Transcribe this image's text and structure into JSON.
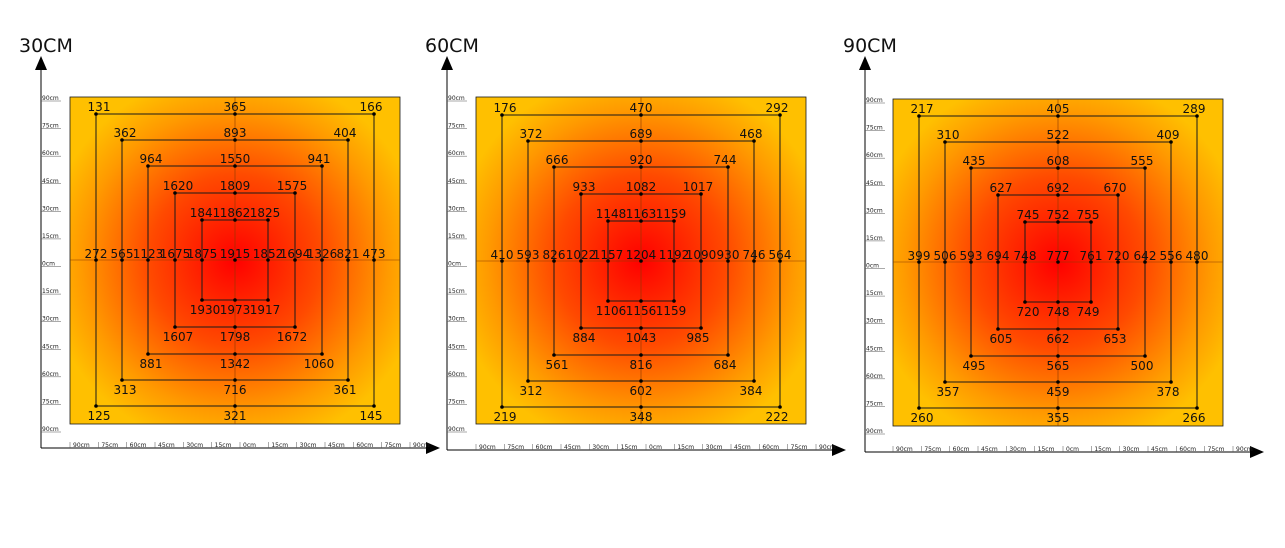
{
  "chart_data": [
    {
      "type": "heatmap",
      "title": "30CM",
      "axis_tick_labels": [
        "90cm",
        "75cm",
        "60cm",
        "45cm",
        "30cm",
        "15cm",
        "0cm",
        "15cm",
        "30cm",
        "45cm",
        "60cm",
        "75cm",
        "90cm"
      ],
      "rings": [
        {
          "name": "",
          "values": {
            "tl": 131,
            "tm": 365,
            "tr": 166,
            "ml": 272,
            "mr": 473,
            "bl": 125,
            "bm": 321,
            "br": 145
          }
        },
        {
          "name": "",
          "values": {
            "tl": 362,
            "tm": 893,
            "tr": 404,
            "ml": 565,
            "mr": 821,
            "bl": 313,
            "bm": 716,
            "br": 361
          }
        },
        {
          "name": "",
          "values": {
            "tl": 964,
            "tm": 1550,
            "tr": 941,
            "ml": 1123,
            "mr": 1326,
            "bl": 881,
            "bm": 1342,
            "br": 1060
          }
        },
        {
          "name": "",
          "values": {
            "tl": 1620,
            "tm": 1809,
            "tr": 1575,
            "ml": 1675,
            "mr": 1694,
            "bl": 1607,
            "bm": 1798,
            "br": 1672
          }
        },
        {
          "name": "",
          "values": {
            "tl": 1841,
            "tm": 1862,
            "tr": 1825,
            "ml": 1875,
            "mr": 1852,
            "bl": 1930,
            "bm": 1973,
            "br": 1917
          }
        }
      ],
      "center": 1915
    },
    {
      "type": "heatmap",
      "title": "60CM",
      "axis_tick_labels": [
        "90cm",
        "75cm",
        "60cm",
        "45cm",
        "30cm",
        "15cm",
        "0cm",
        "15cm",
        "30cm",
        "45cm",
        "60cm",
        "75cm",
        "90cm"
      ],
      "rings": [
        {
          "name": "",
          "values": {
            "tl": 176,
            "tm": 470,
            "tr": 292,
            "ml": 410,
            "mr": 564,
            "bl": 219,
            "bm": 348,
            "br": 222
          }
        },
        {
          "name": "",
          "values": {
            "tl": 372,
            "tm": 689,
            "tr": 468,
            "ml": 593,
            "mr": 746,
            "bl": 312,
            "bm": 602,
            "br": 384
          }
        },
        {
          "name": "",
          "values": {
            "tl": 666,
            "tm": 920,
            "tr": 744,
            "ml": 826,
            "mr": 930,
            "bl": 561,
            "bm": 816,
            "br": 684
          }
        },
        {
          "name": "",
          "values": {
            "tl": 933,
            "tm": 1082,
            "tr": 1017,
            "ml": 1022,
            "mr": 1090,
            "bl": 884,
            "bm": 1043,
            "br": 985
          }
        },
        {
          "name": "",
          "values": {
            "tl": 1148,
            "tm": 1163,
            "tr": 1159,
            "ml": 1157,
            "mr": 1192,
            "bl": 1106,
            "bm": 1156,
            "br": 1159
          }
        }
      ],
      "center": 1204
    },
    {
      "type": "heatmap",
      "title": "90CM",
      "axis_tick_labels": [
        "90cm",
        "75cm",
        "60cm",
        "45cm",
        "30cm",
        "15cm",
        "0cm",
        "15cm",
        "30cm",
        "45cm",
        "60cm",
        "75cm",
        "90cm"
      ],
      "rings": [
        {
          "name": "",
          "values": {
            "tl": 217,
            "tm": 405,
            "tr": 289,
            "ml": 399,
            "mr": 480,
            "bl": 260,
            "bm": 355,
            "br": 266
          }
        },
        {
          "name": "",
          "values": {
            "tl": 310,
            "tm": 522,
            "tr": 409,
            "ml": 506,
            "mr": 556,
            "bl": 357,
            "bm": 459,
            "br": 378
          }
        },
        {
          "name": "",
          "values": {
            "tl": 435,
            "tm": 608,
            "tr": 555,
            "ml": 593,
            "mr": 642,
            "bl": 495,
            "bm": 565,
            "br": 500
          }
        },
        {
          "name": "",
          "values": {
            "tl": 627,
            "tm": 692,
            "tr": 670,
            "ml": 694,
            "mr": 720,
            "bl": 605,
            "bm": 662,
            "br": 653
          }
        },
        {
          "name": "",
          "values": {
            "tl": 745,
            "tm": 752,
            "tr": 755,
            "ml": 748,
            "mr": 761,
            "bl": 720,
            "bm": 748,
            "br": 749
          }
        }
      ],
      "center": 777
    }
  ],
  "colors": {
    "edge": "#ffc000",
    "center": "#ff0000",
    "line": "#1a1a1a",
    "axis": "#000000"
  }
}
